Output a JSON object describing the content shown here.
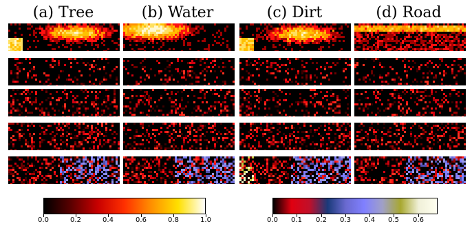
{
  "columns": [
    {
      "label": "(a) Tree"
    },
    {
      "label": "(b) Water"
    },
    {
      "label": "(c) Dirt"
    },
    {
      "label": "(d) Road"
    }
  ],
  "colorbars": [
    {
      "name": "hot-colormap",
      "ticks": [
        "0.0",
        "0.2",
        "0.4",
        "0.6",
        "0.8",
        "1.0"
      ],
      "tick_values": [
        0.0,
        0.2,
        0.4,
        0.6,
        0.8,
        1.0
      ],
      "range": [
        0.0,
        1.0
      ],
      "colors": [
        "#000000",
        "#5a0000",
        "#c80000",
        "#ff3000",
        "#ff9000",
        "#ffe000",
        "#ffffff"
      ]
    },
    {
      "name": "error-colormap",
      "ticks": [
        "0.0",
        "0.1",
        "0.2",
        "0.3",
        "0.4",
        "0.5",
        "0.6"
      ],
      "tick_values": [
        0.0,
        0.1,
        0.2,
        0.3,
        0.4,
        0.5,
        0.6
      ],
      "range": [
        0.0,
        0.68
      ],
      "colors": [
        "#000000",
        "#e00010",
        "#c0102a",
        "#1a3a7a",
        "#6a6ad0",
        "#8080ff",
        "#a0a0c8",
        "#a8a830",
        "#f0f0d8",
        "#fffff0"
      ]
    }
  ]
}
